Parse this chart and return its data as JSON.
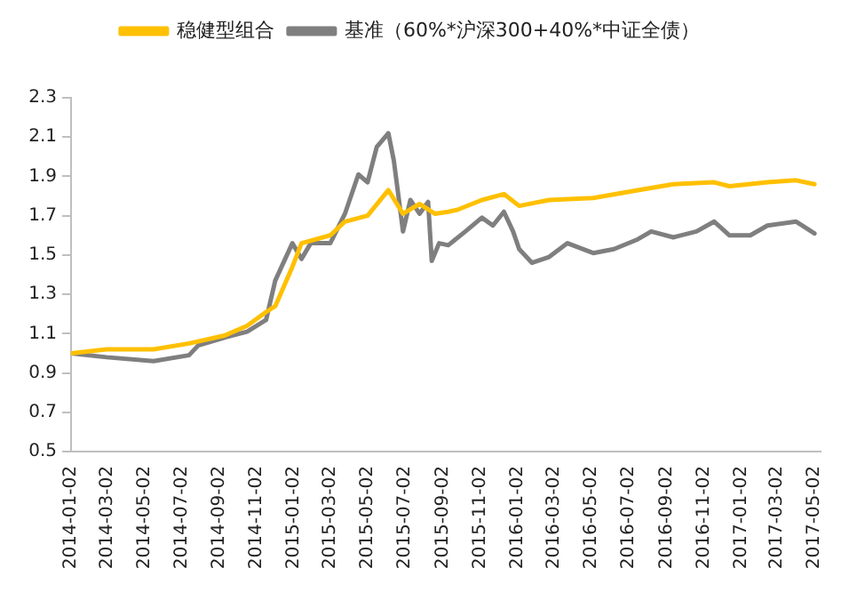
{
  "chart_data": {
    "type": "line",
    "legend": "top",
    "grid": false,
    "marker": "none",
    "line_style": "solid",
    "xlim": [
      "2014-01-02",
      "2017-05-12"
    ],
    "xticks": [
      "2014-01-02",
      "2014-03-02",
      "2014-05-02",
      "2014-07-02",
      "2014-09-02",
      "2014-11-02",
      "2015-01-02",
      "2015-03-02",
      "2015-05-02",
      "2015-07-02",
      "2015-09-02",
      "2015-11-02",
      "2016-01-02",
      "2016-03-02",
      "2016-05-02",
      "2016-07-02",
      "2016-09-02",
      "2016-11-02",
      "2017-01-02",
      "2017-03-02",
      "2017-05-02"
    ],
    "ylim": [
      0.5,
      2.3
    ],
    "yticks": [
      0.5,
      0.7,
      0.9,
      1.1,
      1.3,
      1.5,
      1.7,
      1.9,
      2.1,
      2.3
    ],
    "series": [
      {
        "name": "稳健型组合",
        "color": "#ffc000",
        "x": [
          "2014-01-02",
          "2014-03-01",
          "2014-05-17",
          "2014-07-14",
          "2014-09-10",
          "2014-10-17",
          "2014-11-17",
          "2014-12-02",
          "2014-12-30",
          "2015-01-14",
          "2015-03-02",
          "2015-03-26",
          "2015-05-02",
          "2015-06-05",
          "2015-06-29",
          "2015-07-26",
          "2015-08-20",
          "2015-09-11",
          "2015-09-26",
          "2015-11-05",
          "2015-12-11",
          "2016-01-05",
          "2016-02-23",
          "2016-05-05",
          "2016-07-17",
          "2016-09-13",
          "2016-11-19",
          "2016-12-14",
          "2017-02-14",
          "2017-04-02",
          "2017-05-02"
        ],
        "values": [
          1.0,
          1.02,
          1.02,
          1.05,
          1.09,
          1.14,
          1.21,
          1.24,
          1.44,
          1.56,
          1.6,
          1.67,
          1.7,
          1.83,
          1.71,
          1.76,
          1.71,
          1.72,
          1.73,
          1.78,
          1.81,
          1.75,
          1.78,
          1.79,
          1.83,
          1.86,
          1.87,
          1.85,
          1.87,
          1.88,
          1.86
        ]
      },
      {
        "name": "基准（60%*沪深300+40%*中证全债）",
        "color": "#7f7f7f",
        "x": [
          "2014-01-02",
          "2014-03-01",
          "2014-05-17",
          "2014-07-14",
          "2014-07-29",
          "2014-09-10",
          "2014-10-17",
          "2014-11-17",
          "2014-12-02",
          "2014-12-30",
          "2015-01-14",
          "2015-01-29",
          "2015-03-02",
          "2015-03-26",
          "2015-04-17",
          "2015-05-02",
          "2015-05-17",
          "2015-06-05",
          "2015-06-14",
          "2015-06-29",
          "2015-07-11",
          "2015-07-26",
          "2015-08-09",
          "2015-08-15",
          "2015-08-27",
          "2015-09-11",
          "2015-10-09",
          "2015-11-05",
          "2015-11-23",
          "2015-12-11",
          "2015-12-26",
          "2016-01-05",
          "2016-01-26",
          "2016-02-23",
          "2016-03-24",
          "2016-05-05",
          "2016-06-08",
          "2016-07-17",
          "2016-08-08",
          "2016-09-13",
          "2016-10-21",
          "2016-11-19",
          "2016-12-14",
          "2017-01-17",
          "2017-02-14",
          "2017-04-02",
          "2017-05-02"
        ],
        "values": [
          1.0,
          0.98,
          0.96,
          0.99,
          1.04,
          1.08,
          1.11,
          1.17,
          1.37,
          1.56,
          1.48,
          1.56,
          1.56,
          1.71,
          1.91,
          1.87,
          2.05,
          2.12,
          1.98,
          1.62,
          1.78,
          1.71,
          1.77,
          1.47,
          1.56,
          1.55,
          1.62,
          1.69,
          1.65,
          1.72,
          1.62,
          1.53,
          1.46,
          1.49,
          1.56,
          1.51,
          1.53,
          1.58,
          1.62,
          1.59,
          1.62,
          1.67,
          1.6,
          1.6,
          1.65,
          1.67,
          1.61
        ]
      }
    ]
  }
}
